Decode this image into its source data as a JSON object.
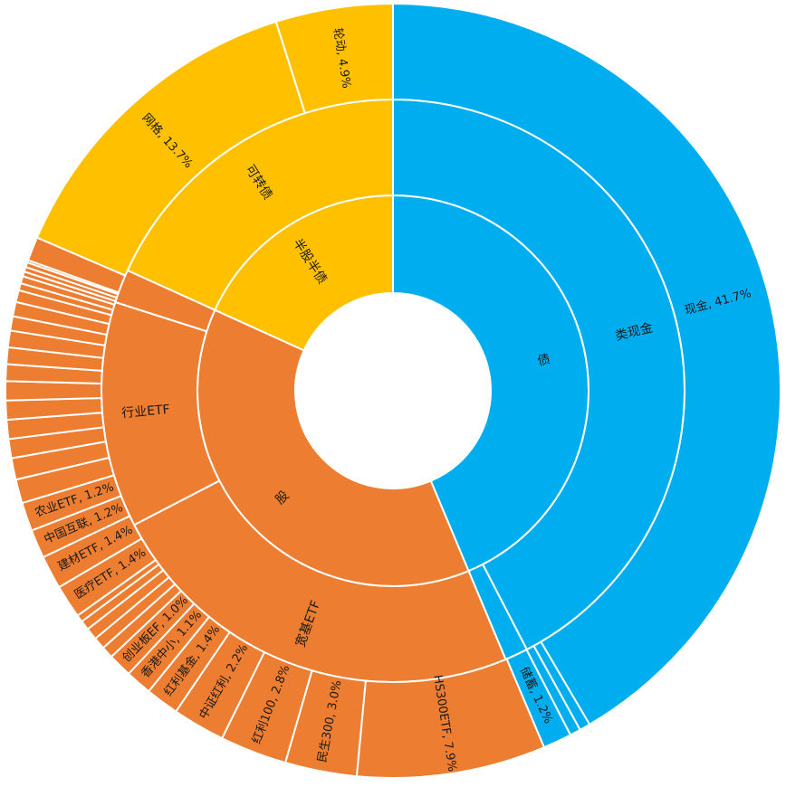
{
  "chart_data": {
    "type": "sunburst",
    "unit": "%",
    "colors": {
      "债": "#00AEEF",
      "股": "#ED7D31",
      "半股半债": "#FFC000",
      "border": "#ffffff"
    },
    "rings": [
      {
        "level": 1,
        "segments": [
          {
            "label": "债",
            "value": 44.6,
            "group": "债",
            "show_label": true
          },
          {
            "label": "股",
            "value": 38.9,
            "group": "股",
            "show_label": true
          },
          {
            "label": "半股半债",
            "value": 18.6,
            "group": "半股半债",
            "show_label": true
          }
        ]
      },
      {
        "level": 2,
        "segments": [
          {
            "label": "类现金",
            "value": 43.3,
            "group": "债",
            "show_label": true
          },
          {
            "label": "",
            "value": 1.3,
            "group": "债",
            "show_label": false
          },
          {
            "label": "宽基ETF",
            "value": 24.2,
            "group": "股",
            "show_label": true
          },
          {
            "label": "行业ETF",
            "value": 12.8,
            "group": "股",
            "show_label": true
          },
          {
            "label": "",
            "value": 1.9,
            "group": "股",
            "show_label": false
          },
          {
            "label": "可转债",
            "value": 18.6,
            "group": "半股半债",
            "show_label": true
          }
        ]
      },
      {
        "level": 3,
        "segments": [
          {
            "label": "现金, 41.7%",
            "value": 41.7,
            "group": "债",
            "show_label": true
          },
          {
            "label": "",
            "value": 0.45,
            "group": "债",
            "show_label": false
          },
          {
            "label": "",
            "value": 0.45,
            "group": "债",
            "show_label": false
          },
          {
            "label": "储蓄, 1.2%",
            "value": 1.2,
            "group": "债",
            "show_label": true
          },
          {
            "label": "HS300ETF, 7.9%",
            "value": 7.9,
            "group": "股",
            "show_label": true
          },
          {
            "label": "民生300, 3.0%",
            "value": 3.0,
            "group": "股",
            "show_label": true
          },
          {
            "label": "红利100, 2.8%",
            "value": 2.8,
            "group": "股",
            "show_label": true
          },
          {
            "label": "中证红利, 2.2%",
            "value": 2.2,
            "group": "股",
            "show_label": true
          },
          {
            "label": "红利基金, 1.4%",
            "value": 1.4,
            "group": "股",
            "show_label": true
          },
          {
            "label": "香港中小, 1.1%",
            "value": 1.1,
            "group": "股",
            "show_label": true
          },
          {
            "label": "创业板EF, 1.0%",
            "value": 1.0,
            "group": "股",
            "show_label": true
          },
          {
            "label": "",
            "value": 0.5,
            "group": "股",
            "show_label": false
          },
          {
            "label": "",
            "value": 0.5,
            "group": "股",
            "show_label": false
          },
          {
            "label": "",
            "value": 0.5,
            "group": "股",
            "show_label": false
          },
          {
            "label": "",
            "value": 0.4,
            "group": "股",
            "show_label": false
          },
          {
            "label": "",
            "value": 0.3,
            "group": "股",
            "show_label": false
          },
          {
            "label": "医疗ETF, 1.4%",
            "value": 1.4,
            "group": "股",
            "show_label": true
          },
          {
            "label": "建材ETF, 1.4%",
            "value": 1.4,
            "group": "股",
            "show_label": true
          },
          {
            "label": "中国互联, 1.2%",
            "value": 1.2,
            "group": "股",
            "show_label": true
          },
          {
            "label": "农业ETF, 1.2%",
            "value": 1.2,
            "group": "股",
            "show_label": true
          },
          {
            "label": "",
            "value": 1.0,
            "group": "股",
            "show_label": false
          },
          {
            "label": "",
            "value": 0.9,
            "group": "股",
            "show_label": false
          },
          {
            "label": "",
            "value": 0.8,
            "group": "股",
            "show_label": false
          },
          {
            "label": "",
            "value": 0.8,
            "group": "股",
            "show_label": false
          },
          {
            "label": "",
            "value": 0.8,
            "group": "股",
            "show_label": false
          },
          {
            "label": "",
            "value": 0.8,
            "group": "股",
            "show_label": false
          },
          {
            "label": "",
            "value": 0.7,
            "group": "股",
            "show_label": false
          },
          {
            "label": "",
            "value": 0.7,
            "group": "股",
            "show_label": false
          },
          {
            "label": "",
            "value": 0.7,
            "group": "股",
            "show_label": false
          },
          {
            "label": "",
            "value": 0.6,
            "group": "股",
            "show_label": false
          },
          {
            "label": "",
            "value": 0.6,
            "group": "股",
            "show_label": false
          },
          {
            "label": "",
            "value": 0.5,
            "group": "股",
            "show_label": false
          },
          {
            "label": "",
            "value": 0.3,
            "group": "股",
            "show_label": false
          },
          {
            "label": "",
            "value": 0.3,
            "group": "股",
            "show_label": false
          },
          {
            "label": "",
            "value": 0.2,
            "group": "股",
            "show_label": false
          },
          {
            "label": "",
            "value": 0.2,
            "group": "股",
            "show_label": false
          },
          {
            "label": "",
            "value": 0.2,
            "group": "股",
            "show_label": false
          },
          {
            "label": "",
            "value": 0.1,
            "group": "股",
            "show_label": false
          },
          {
            "label": "",
            "value": 1.0,
            "group": "股",
            "show_label": false
          },
          {
            "label": "网格, 13.7%",
            "value": 13.7,
            "group": "半股半债",
            "show_label": true
          },
          {
            "label": "轮动, 4.9%",
            "value": 4.9,
            "group": "半股半债",
            "show_label": true
          }
        ]
      }
    ]
  }
}
